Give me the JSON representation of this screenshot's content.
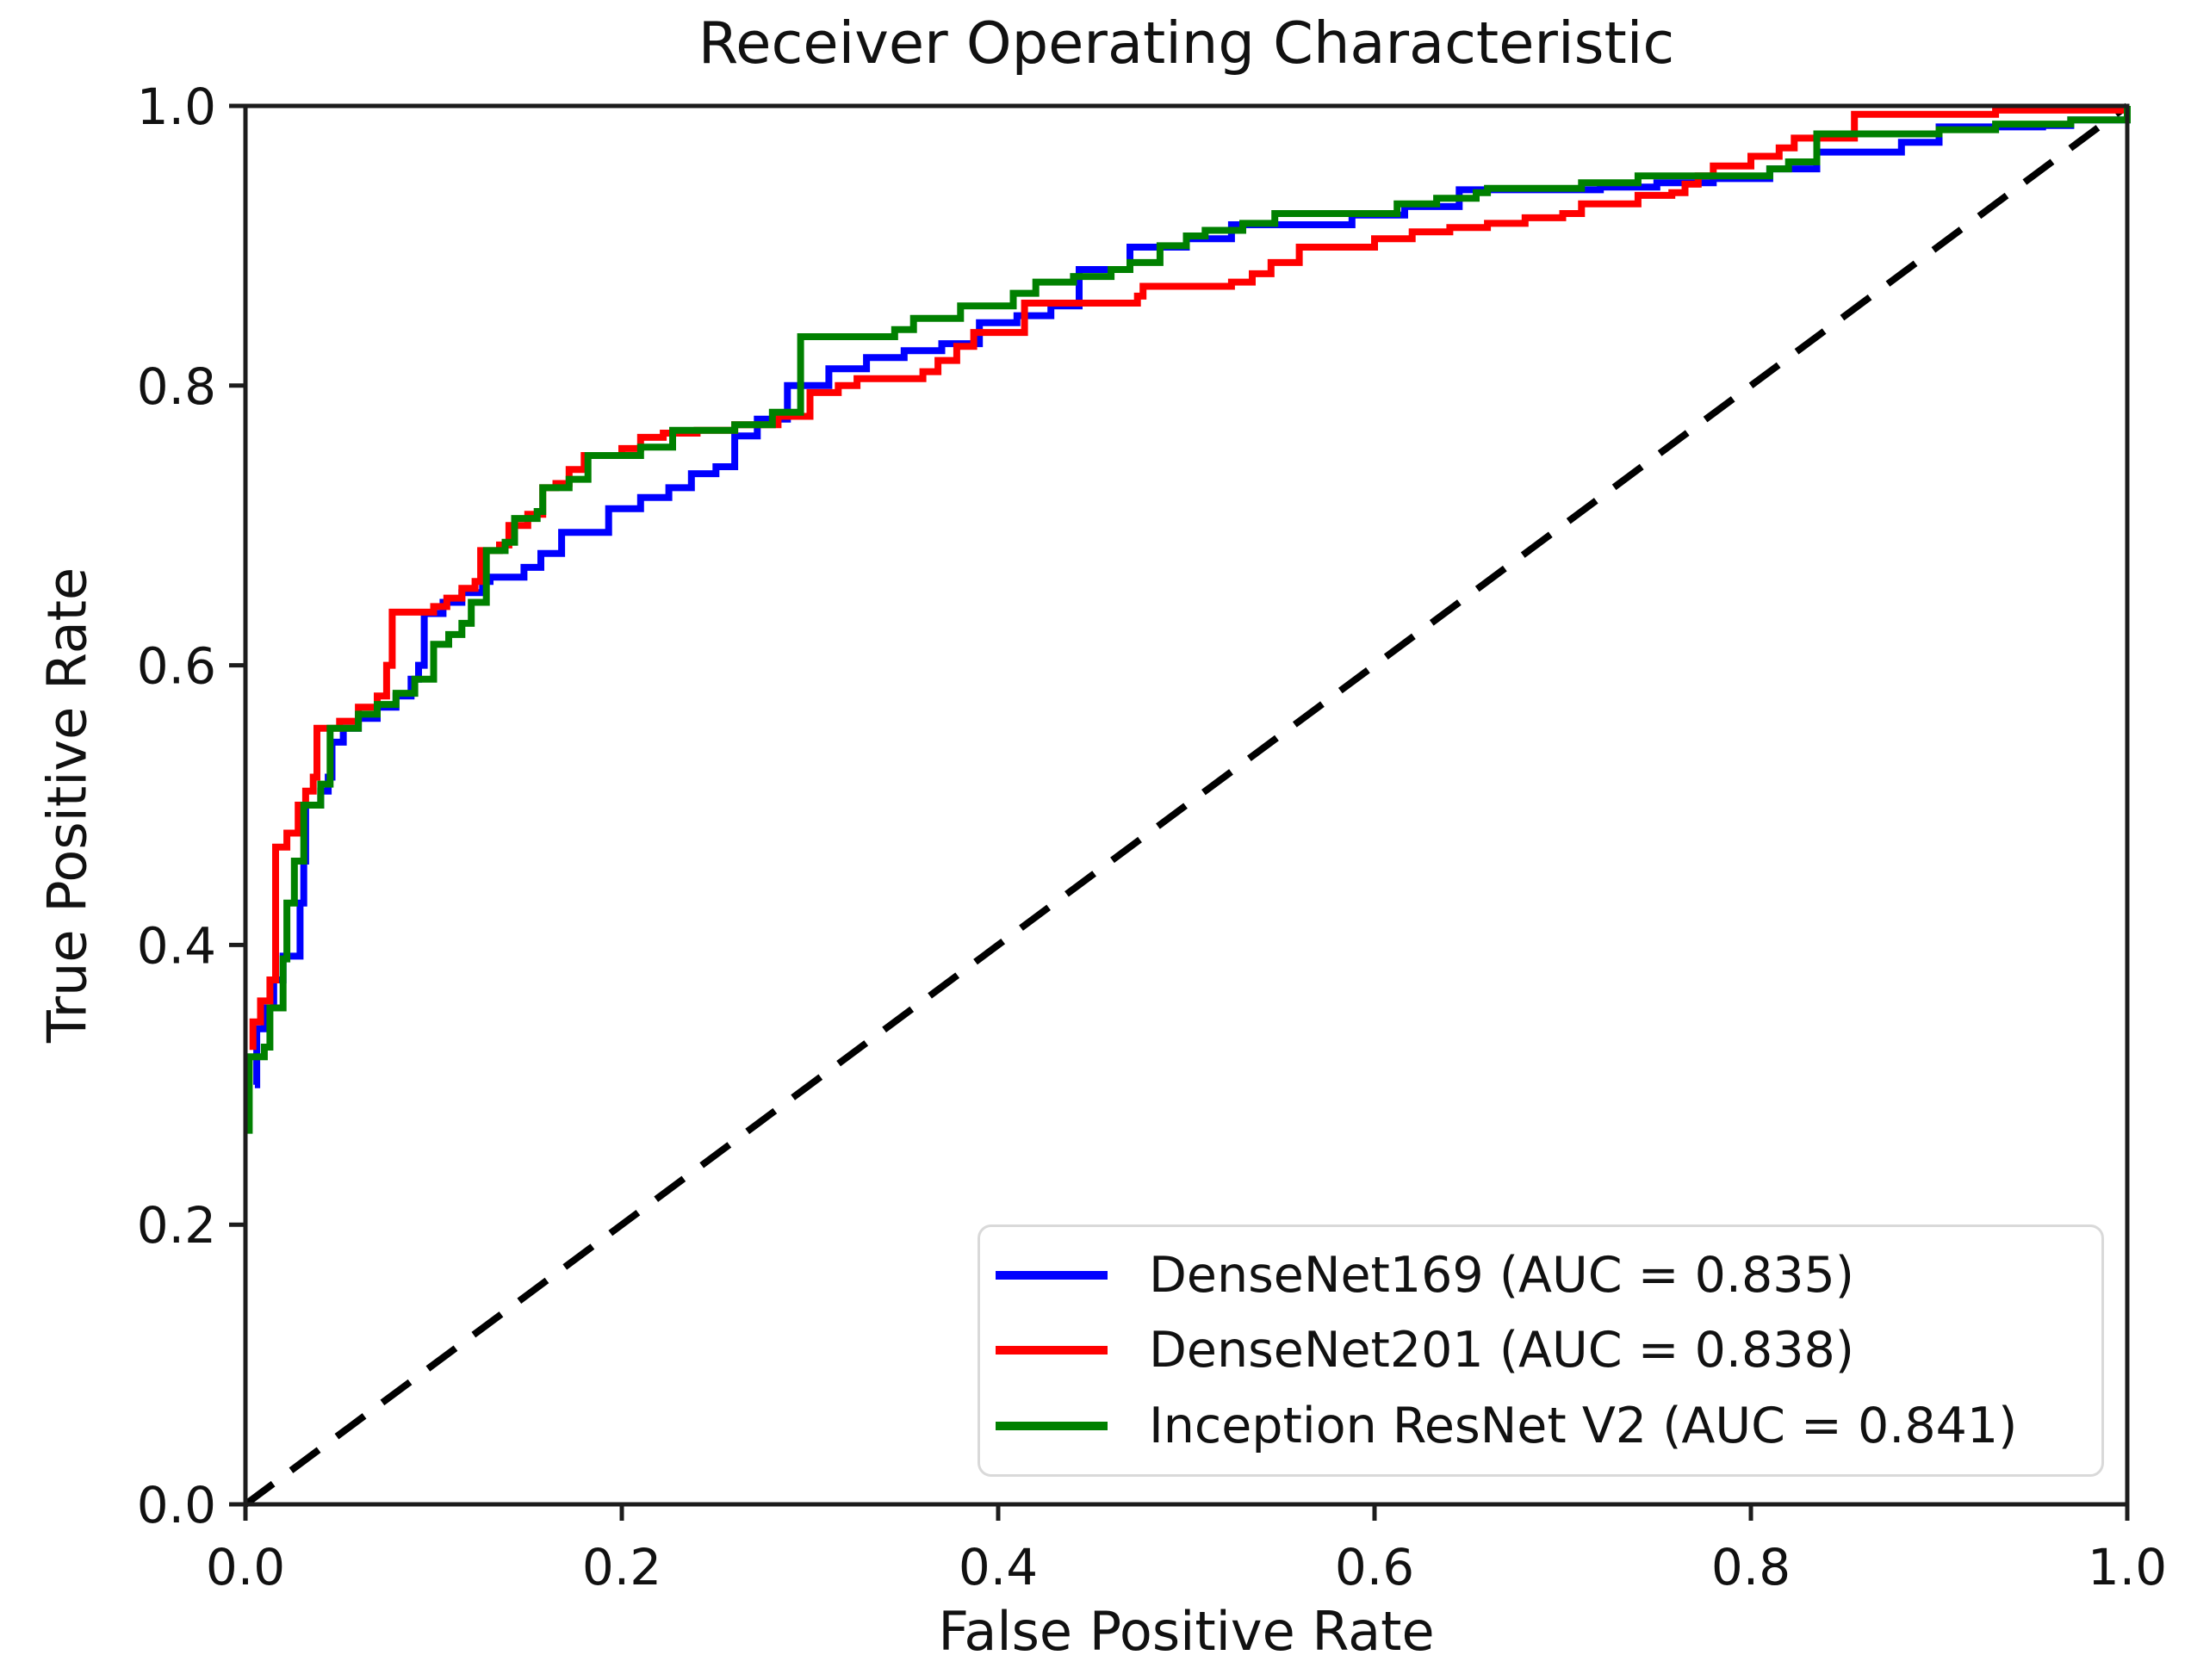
{
  "title": "Receiver Operating Characteristic",
  "axes": {
    "xlabel": "False Positive Rate",
    "ylabel": "True Positive Rate",
    "x_tick_labels": [
      "0.0",
      "0.2",
      "0.4",
      "0.6",
      "0.8",
      "1.0"
    ],
    "y_tick_labels": [
      "0.0",
      "0.2",
      "0.4",
      "0.6",
      "0.8",
      "1.0"
    ],
    "axis_color": "#1c1c1c",
    "text_color": "#111111"
  },
  "legend": {
    "position": "lower right",
    "entries": [
      {
        "label": "DenseNet169 (AUC = 0.835)",
        "color": "#0000ff"
      },
      {
        "label": "DenseNet201 (AUC = 0.838)",
        "color": "#ff0000"
      },
      {
        "label": "Inception ResNet V2 (AUC = 0.841)",
        "color": "#008000"
      }
    ]
  },
  "chart_data": {
    "type": "line",
    "subtype": "roc-step-curves",
    "title": "Receiver Operating Characteristic",
    "xlabel": "False Positive Rate",
    "ylabel": "True Positive Rate",
    "xlim": [
      0.0,
      1.0
    ],
    "ylim": [
      0.0,
      1.0
    ],
    "grid": false,
    "legend_position": "lower right",
    "reference_line": {
      "name": "chance-diagonal",
      "style": "dashed",
      "color": "#000000",
      "points": [
        [
          0.0,
          0.0
        ],
        [
          1.0,
          1.0
        ]
      ]
    },
    "series": [
      {
        "name": "DenseNet169",
        "auc": 0.835,
        "color": "#0000ff",
        "step": true,
        "points": [
          [
            0.005,
            0.3
          ],
          [
            0.006,
            0.34
          ],
          [
            0.01,
            0.355
          ],
          [
            0.015,
            0.375
          ],
          [
            0.02,
            0.392
          ],
          [
            0.029,
            0.43
          ],
          [
            0.031,
            0.46
          ],
          [
            0.032,
            0.5
          ],
          [
            0.04,
            0.51
          ],
          [
            0.044,
            0.52
          ],
          [
            0.046,
            0.545
          ],
          [
            0.052,
            0.555
          ],
          [
            0.06,
            0.562
          ],
          [
            0.07,
            0.57
          ],
          [
            0.08,
            0.578
          ],
          [
            0.088,
            0.59
          ],
          [
            0.092,
            0.6
          ],
          [
            0.095,
            0.637
          ],
          [
            0.105,
            0.645
          ],
          [
            0.115,
            0.652
          ],
          [
            0.126,
            0.66
          ],
          [
            0.13,
            0.663
          ],
          [
            0.148,
            0.67
          ],
          [
            0.157,
            0.68
          ],
          [
            0.168,
            0.695
          ],
          [
            0.193,
            0.712
          ],
          [
            0.21,
            0.72
          ],
          [
            0.225,
            0.727
          ],
          [
            0.237,
            0.737
          ],
          [
            0.25,
            0.742
          ],
          [
            0.26,
            0.764
          ],
          [
            0.272,
            0.776
          ],
          [
            0.288,
            0.8
          ],
          [
            0.31,
            0.812
          ],
          [
            0.33,
            0.82
          ],
          [
            0.35,
            0.825
          ],
          [
            0.37,
            0.83
          ],
          [
            0.39,
            0.845
          ],
          [
            0.41,
            0.85
          ],
          [
            0.428,
            0.857
          ],
          [
            0.443,
            0.883
          ],
          [
            0.47,
            0.899
          ],
          [
            0.5,
            0.905
          ],
          [
            0.524,
            0.915
          ],
          [
            0.588,
            0.922
          ],
          [
            0.616,
            0.928
          ],
          [
            0.645,
            0.94
          ],
          [
            0.72,
            0.942
          ],
          [
            0.75,
            0.945
          ],
          [
            0.78,
            0.948
          ],
          [
            0.81,
            0.955
          ],
          [
            0.835,
            0.967
          ],
          [
            0.88,
            0.974
          ],
          [
            0.9,
            0.985
          ],
          [
            0.955,
            0.986
          ],
          [
            0.97,
            0.99
          ],
          [
            1.0,
            1.0
          ]
        ]
      },
      {
        "name": "DenseNet201",
        "auc": 0.838,
        "color": "#ff0000",
        "step": true,
        "points": [
          [
            0.004,
            0.325
          ],
          [
            0.004,
            0.345
          ],
          [
            0.008,
            0.36
          ],
          [
            0.013,
            0.375
          ],
          [
            0.016,
            0.47
          ],
          [
            0.022,
            0.48
          ],
          [
            0.028,
            0.5
          ],
          [
            0.032,
            0.51
          ],
          [
            0.036,
            0.52
          ],
          [
            0.038,
            0.555
          ],
          [
            0.05,
            0.56
          ],
          [
            0.06,
            0.57
          ],
          [
            0.07,
            0.578
          ],
          [
            0.075,
            0.6
          ],
          [
            0.078,
            0.638
          ],
          [
            0.1,
            0.642
          ],
          [
            0.107,
            0.648
          ],
          [
            0.115,
            0.655
          ],
          [
            0.122,
            0.66
          ],
          [
            0.125,
            0.682
          ],
          [
            0.135,
            0.686
          ],
          [
            0.14,
            0.7
          ],
          [
            0.15,
            0.708
          ],
          [
            0.158,
            0.727
          ],
          [
            0.165,
            0.73
          ],
          [
            0.172,
            0.74
          ],
          [
            0.18,
            0.75
          ],
          [
            0.2,
            0.755
          ],
          [
            0.21,
            0.763
          ],
          [
            0.222,
            0.766
          ],
          [
            0.24,
            0.768
          ],
          [
            0.26,
            0.772
          ],
          [
            0.283,
            0.778
          ],
          [
            0.3,
            0.795
          ],
          [
            0.315,
            0.8
          ],
          [
            0.325,
            0.805
          ],
          [
            0.36,
            0.81
          ],
          [
            0.368,
            0.818
          ],
          [
            0.378,
            0.828
          ],
          [
            0.387,
            0.838
          ],
          [
            0.414,
            0.859
          ],
          [
            0.474,
            0.864
          ],
          [
            0.477,
            0.871
          ],
          [
            0.524,
            0.874
          ],
          [
            0.535,
            0.88
          ],
          [
            0.545,
            0.888
          ],
          [
            0.56,
            0.899
          ],
          [
            0.6,
            0.905
          ],
          [
            0.62,
            0.91
          ],
          [
            0.64,
            0.913
          ],
          [
            0.66,
            0.916
          ],
          [
            0.68,
            0.92
          ],
          [
            0.7,
            0.923
          ],
          [
            0.71,
            0.93
          ],
          [
            0.74,
            0.936
          ],
          [
            0.758,
            0.938
          ],
          [
            0.765,
            0.944
          ],
          [
            0.772,
            0.95
          ],
          [
            0.78,
            0.957
          ],
          [
            0.8,
            0.964
          ],
          [
            0.815,
            0.97
          ],
          [
            0.823,
            0.977
          ],
          [
            0.855,
            0.994
          ],
          [
            0.93,
            0.997
          ],
          [
            1.0,
            1.0
          ]
        ]
      },
      {
        "name": "Inception ResNet V2",
        "auc": 0.841,
        "color": "#008000",
        "step": true,
        "points": [
          [
            0.002,
            0.265
          ],
          [
            0.002,
            0.32
          ],
          [
            0.01,
            0.327
          ],
          [
            0.013,
            0.355
          ],
          [
            0.02,
            0.39
          ],
          [
            0.022,
            0.43
          ],
          [
            0.026,
            0.46
          ],
          [
            0.031,
            0.5
          ],
          [
            0.04,
            0.515
          ],
          [
            0.045,
            0.555
          ],
          [
            0.06,
            0.565
          ],
          [
            0.07,
            0.572
          ],
          [
            0.08,
            0.58
          ],
          [
            0.09,
            0.59
          ],
          [
            0.1,
            0.615
          ],
          [
            0.108,
            0.622
          ],
          [
            0.115,
            0.63
          ],
          [
            0.12,
            0.645
          ],
          [
            0.128,
            0.682
          ],
          [
            0.138,
            0.688
          ],
          [
            0.143,
            0.705
          ],
          [
            0.155,
            0.71
          ],
          [
            0.158,
            0.727
          ],
          [
            0.172,
            0.733
          ],
          [
            0.182,
            0.75
          ],
          [
            0.21,
            0.756
          ],
          [
            0.227,
            0.768
          ],
          [
            0.26,
            0.772
          ],
          [
            0.28,
            0.781
          ],
          [
            0.295,
            0.835
          ],
          [
            0.345,
            0.84
          ],
          [
            0.355,
            0.848
          ],
          [
            0.38,
            0.857
          ],
          [
            0.408,
            0.866
          ],
          [
            0.42,
            0.874
          ],
          [
            0.44,
            0.878
          ],
          [
            0.46,
            0.883
          ],
          [
            0.47,
            0.888
          ],
          [
            0.486,
            0.9
          ],
          [
            0.5,
            0.907
          ],
          [
            0.51,
            0.911
          ],
          [
            0.53,
            0.916
          ],
          [
            0.547,
            0.923
          ],
          [
            0.612,
            0.93
          ],
          [
            0.633,
            0.934
          ],
          [
            0.654,
            0.938
          ],
          [
            0.66,
            0.941
          ],
          [
            0.71,
            0.945
          ],
          [
            0.74,
            0.95
          ],
          [
            0.81,
            0.955
          ],
          [
            0.82,
            0.96
          ],
          [
            0.835,
            0.98
          ],
          [
            0.9,
            0.983
          ],
          [
            0.93,
            0.987
          ],
          [
            0.97,
            0.99
          ],
          [
            1.0,
            1.0
          ]
        ]
      }
    ]
  }
}
